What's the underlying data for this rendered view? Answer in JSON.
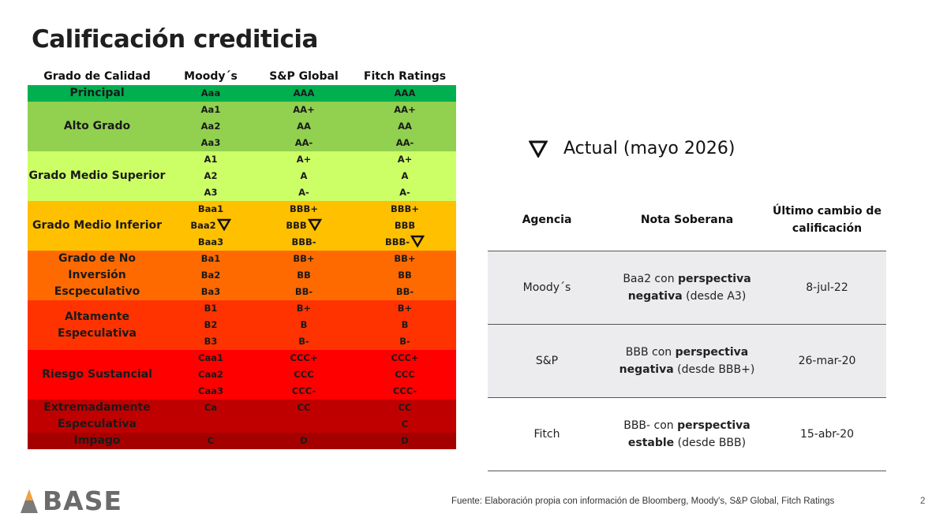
{
  "title": "Calificación crediticia",
  "ratings_table": {
    "headers": {
      "grade": "Grado de Calidad",
      "moodys": "Moody´s",
      "sp": "S&P Global",
      "fitch": "Fitch Ratings"
    },
    "bands": [
      {
        "label": "Principal",
        "color": "#00b050",
        "rows": [
          [
            "Aaa",
            "AAA",
            "AAA"
          ]
        ]
      },
      {
        "label": "Alto Grado",
        "color": "#92d050",
        "rows": [
          [
            "Aa1",
            "AA+",
            "AA+"
          ],
          [
            "Aa2",
            "AA",
            "AA"
          ],
          [
            "Aa3",
            "AA-",
            "AA-"
          ]
        ]
      },
      {
        "label": "Grado Medio Superior",
        "color": "#ccff66",
        "rows": [
          [
            "A1",
            "A+",
            "A+"
          ],
          [
            "A2",
            "A",
            "A"
          ],
          [
            "A3",
            "A-",
            "A-"
          ]
        ]
      },
      {
        "label": "Grado Medio Inferior",
        "color": "#ffc000",
        "rows": [
          [
            "Baa1",
            "BBB+",
            "BBB+"
          ],
          [
            "Baa2",
            "BBB",
            "BBB"
          ],
          [
            "Baa3",
            "BBB-",
            "BBB-"
          ]
        ]
      },
      {
        "label": "Grado de No Inversión Escpeculativo",
        "color": "#ff6a00",
        "rows": [
          [
            "Ba1",
            "BB+",
            "BB+"
          ],
          [
            "Ba2",
            "BB",
            "BB"
          ],
          [
            "Ba3",
            "BB-",
            "BB-"
          ]
        ]
      },
      {
        "label": "Altamente Especulativa",
        "color": "#ff3300",
        "rows": [
          [
            "B1",
            "B+",
            "B+"
          ],
          [
            "B2",
            "B",
            "B"
          ],
          [
            "B3",
            "B-",
            "B-"
          ]
        ]
      },
      {
        "label": "Riesgo Sustancial",
        "color": "#ff0000",
        "rows": [
          [
            "Caa1",
            "CCC+",
            "CCC+"
          ],
          [
            "Caa2",
            "CCC",
            "CCC"
          ],
          [
            "Caa3",
            "CCC-",
            "CCC-"
          ]
        ]
      },
      {
        "label": "Extremadamente Especulativa",
        "color": "#c00000",
        "rows": [
          [
            "Ca",
            "CC",
            "CC"
          ],
          [
            "",
            "",
            "C"
          ]
        ]
      },
      {
        "label": "Impago",
        "color": "#a50000",
        "rows": [
          [
            "C",
            "D",
            "D"
          ]
        ]
      }
    ],
    "current_markers": [
      "moodys:Baa2",
      "sp:BBB",
      "fitch:BBB-"
    ]
  },
  "legend": {
    "icon": "down-triangle-icon",
    "text": "Actual (mayo 2026)"
  },
  "sovereign_table": {
    "headers": {
      "agency": "Agencia",
      "note": "Nota Soberana",
      "last_change": "Último cambio de calificación"
    },
    "rows": [
      {
        "agency": "Moody´s",
        "note_pre": "Baa2 con ",
        "note_bold": "perspectiva negativa",
        "note_post": " (desde A3)",
        "date": "8-jul-22"
      },
      {
        "agency": "S&P",
        "note_pre": "BBB con ",
        "note_bold": "perspectiva negativa",
        "note_post": " (desde BBB+)",
        "date": "26-mar-20"
      },
      {
        "agency": "Fitch",
        "note_pre": "BBB- con ",
        "note_bold": "perspectiva estable",
        "note_post": " (desde BBB)",
        "date": "15-abr-20"
      }
    ]
  },
  "footer": {
    "source": "Fuente: Elaboración propia con información de Bloomberg, Moody's, S&P Global, Fitch Ratings",
    "page_number": "2",
    "logo_text": "BASE",
    "logo_colors": {
      "mark_orange": "#f0a23c",
      "mark_gray": "#7a7a7a"
    }
  }
}
